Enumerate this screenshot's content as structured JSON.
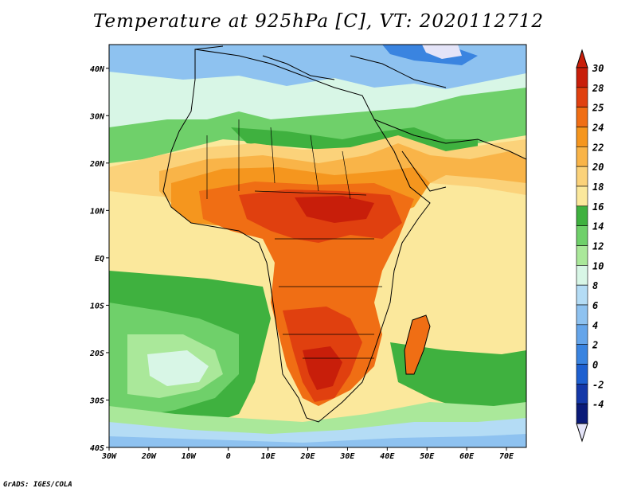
{
  "title": "Temperature at 925hPa [C], VT: 2020112712",
  "credit": "GrADS: IGES/COLA",
  "map_data": {
    "lon_range": [
      -30,
      75
    ],
    "lat_range": [
      -40,
      45
    ],
    "lon_ticks": [
      {
        "value": -30,
        "label": "30W"
      },
      {
        "value": -20,
        "label": "20W"
      },
      {
        "value": -10,
        "label": "10W"
      },
      {
        "value": 0,
        "label": "0"
      },
      {
        "value": 10,
        "label": "10E"
      },
      {
        "value": 20,
        "label": "20E"
      },
      {
        "value": 30,
        "label": "30E"
      },
      {
        "value": 40,
        "label": "40E"
      },
      {
        "value": 50,
        "label": "50E"
      },
      {
        "value": 60,
        "label": "60E"
      },
      {
        "value": 70,
        "label": "70E"
      }
    ],
    "lat_ticks": [
      {
        "value": 40,
        "label": "40N"
      },
      {
        "value": 30,
        "label": "30N"
      },
      {
        "value": 20,
        "label": "20N"
      },
      {
        "value": 10,
        "label": "10N"
      },
      {
        "value": 0,
        "label": "EQ"
      },
      {
        "value": -10,
        "label": "10S"
      },
      {
        "value": -20,
        "label": "20S"
      },
      {
        "value": -30,
        "label": "30S"
      },
      {
        "value": -40,
        "label": "40S"
      }
    ]
  },
  "colorbar": {
    "levels": [
      {
        "label": "30",
        "color": "#c81e0a"
      },
      {
        "label": "28",
        "color": "#e0400f"
      },
      {
        "label": "25",
        "color": "#f06e14"
      },
      {
        "label": "24",
        "color": "#f5961e"
      },
      {
        "label": "22",
        "color": "#f9b448"
      },
      {
        "label": "20",
        "color": "#fbd27a"
      },
      {
        "label": "18",
        "color": "#fbe89c"
      },
      {
        "label": "16",
        "color": "#3fb13f"
      },
      {
        "label": "14",
        "color": "#6fd06a"
      },
      {
        "label": "12",
        "color": "#aae89a"
      },
      {
        "label": "10",
        "color": "#d8f6e6"
      },
      {
        "label": "8",
        "color": "#b4dcf5"
      },
      {
        "label": "6",
        "color": "#8ec2f0"
      },
      {
        "label": "4",
        "color": "#65a5ea"
      },
      {
        "label": "2",
        "color": "#3a84e0"
      },
      {
        "label": "0",
        "color": "#1e60d0"
      },
      {
        "label": "-2",
        "color": "#1438a8"
      },
      {
        "label": "-4",
        "color": "#0a1a78"
      }
    ],
    "over_color": "#c81e0a",
    "under_color": "#e4e4f8"
  }
}
